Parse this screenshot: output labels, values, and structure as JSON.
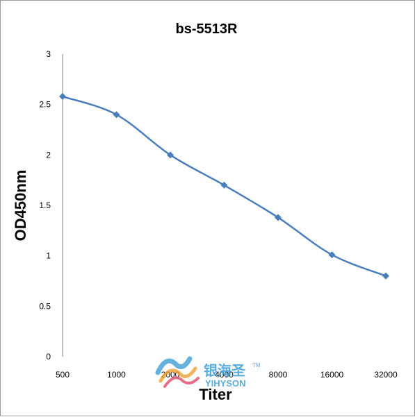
{
  "chart_data": {
    "type": "line",
    "title": "bs-5513R",
    "xlabel": "Titer",
    "ylabel": "OD450nm",
    "categories": [
      "500",
      "1000",
      "2000",
      "4000",
      "8000",
      "16000",
      "32000"
    ],
    "values": [
      2.58,
      2.4,
      2.0,
      1.7,
      1.38,
      1.01,
      0.8
    ],
    "ylim": [
      0,
      3
    ],
    "yticks": [
      "0",
      "0.5",
      "1",
      "1.5",
      "2",
      "2.5",
      "3"
    ],
    "grid": false,
    "legend": "none",
    "line_color": "#4a7ebb",
    "smooth": true,
    "marker": "diamond"
  },
  "watermark": {
    "brand_cn": "银海圣",
    "brand_en": "YIHYSON",
    "trademark": "TM",
    "color": "#3f9fd8"
  }
}
